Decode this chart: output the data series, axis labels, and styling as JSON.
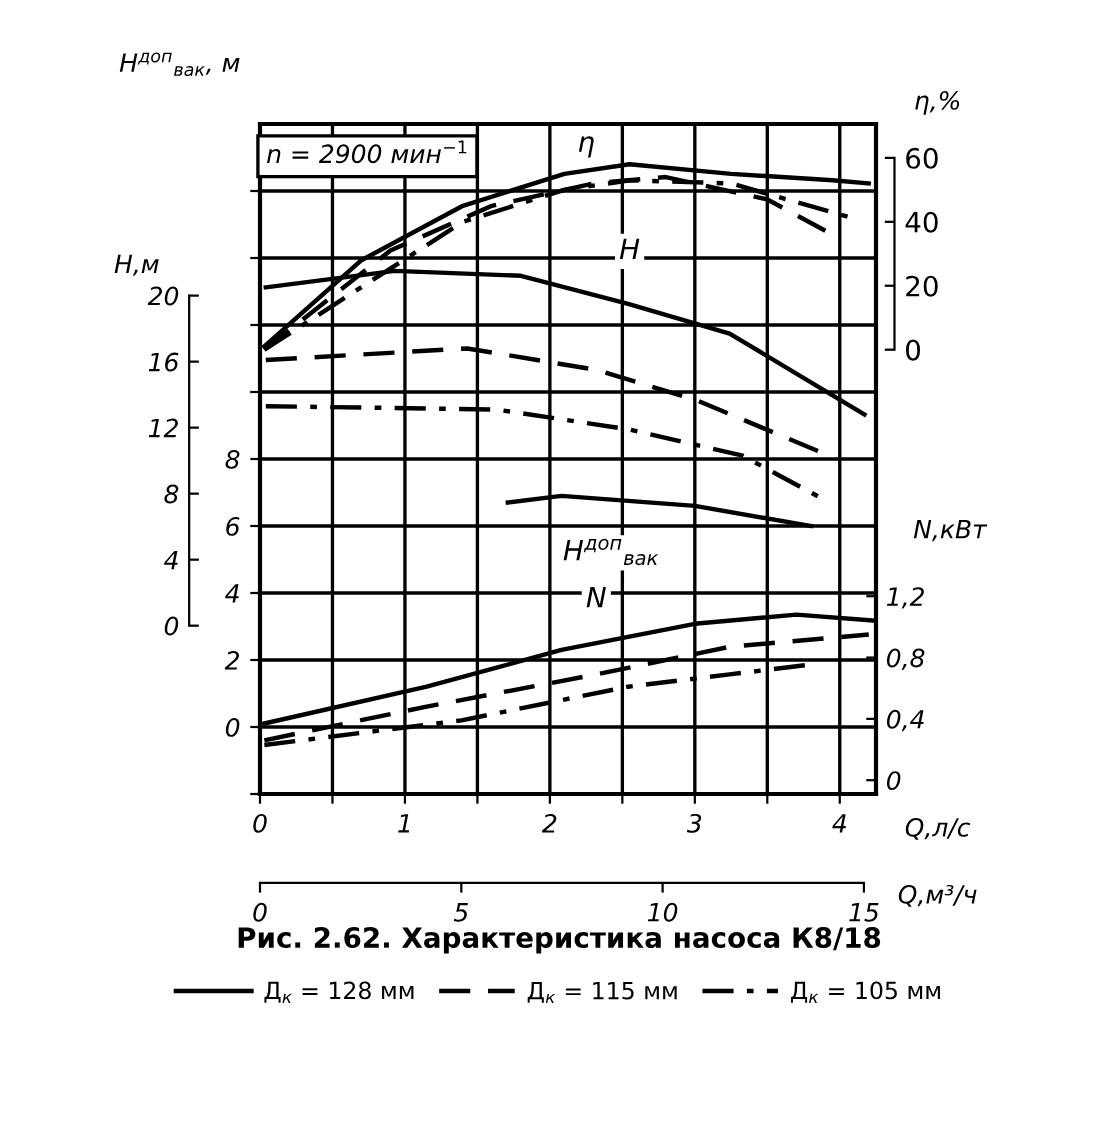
{
  "chart_data": [
    {
      "type": "line",
      "title": "Рис. 2.62. Характеристика насоса К8/18",
      "xlabel": "Q,л/с",
      "ylabel": "H$^{доп}$$_{вак}$, м",
      "y2label": "η,%",
      "y3label": "H,м",
      "x2label": "Q,м³/ч",
      "xlim": [
        0,
        4.25
      ],
      "xticks": [
        0,
        {
          "value": 0.5,
          "label": null
        },
        1,
        {
          "value": 1.5,
          "label": null
        },
        2,
        {
          "value": 2.5,
          "label": null
        },
        3,
        {
          "value": 3.5,
          "label": null
        },
        4
      ],
      "x2lim": [
        0,
        15.3
      ],
      "x2ticks": [
        0,
        5,
        10,
        15
      ],
      "ylim": [
        -2,
        18
      ],
      "yticks": [
        {
          "value": -2,
          "label": null
        },
        0,
        2,
        4,
        6,
        8,
        {
          "value": 10,
          "label": null
        },
        {
          "value": 12,
          "label": null
        },
        {
          "value": 14,
          "label": null
        },
        {
          "value": 16,
          "label": null
        }
      ],
      "y2lim": [
        -139,
        70.6
      ],
      "y2ticks": [
        0,
        20,
        40,
        60
      ],
      "y3lim": [
        -10.2,
        30.4
      ],
      "y3ticks": [
        0,
        4,
        8,
        12,
        16,
        20
      ],
      "grid": true,
      "legend": "bottom",
      "marker": "none",
      "annotations": [
        "n = 2900 мин$^{−1}$",
        {
          "text": "η",
          "x": 2.25,
          "y": 17.4
        },
        {
          "text": "H",
          "x": 2.55,
          "y": 14.2
        },
        "H$^{доп}$$_{вак}$",
        {
          "text": "N",
          "x": 2.32,
          "y": 3.8
        }
      ],
      "series": [
        {
          "name": "Д$_{к}$ = 128 мм",
          "color": "#000000",
          "axis": "y3",
          "line_style": "solid",
          "x": [
            0.04,
            0.93,
            1.8,
            2.54,
            3.24,
            4.17
          ],
          "values": [
            20.5,
            21.5,
            21.2,
            19.5,
            17.7,
            12.8
          ]
        },
        {
          "name": "Д$_{к}$ = 115 мм",
          "color": "#000000",
          "axis": "y3",
          "line_style": "dashed",
          "x": [
            0.04,
            1.43,
            2.32,
            3.0,
            3.9
          ],
          "values": [
            16.1,
            16.8,
            15.5,
            13.7,
            10.4
          ]
        },
        {
          "name": "Д$_{к}$ = 105 мм",
          "color": "#000000",
          "axis": "y3",
          "line_style": "dashdot",
          "x": [
            0.04,
            1.63,
            2.54,
            3.33,
            3.9
          ],
          "values": [
            13.3,
            13.1,
            11.9,
            10.3,
            7.6
          ]
        },
        {
          "color": "#000000",
          "axis": "y2",
          "line_style": "solid",
          "x": [
            0.03,
            0.7,
            1.4,
            2.1,
            2.55,
            3.25,
            3.95,
            4.2
          ],
          "values": [
            1,
            28,
            45,
            55,
            58,
            55,
            53,
            52
          ]
        },
        {
          "color": "#000000",
          "axis": "y2",
          "line_style": "dashed",
          "x": [
            0.03,
            0.9,
            1.6,
            2.3,
            2.8,
            3.5,
            3.95
          ],
          "values": [
            0,
            31,
            45,
            52,
            54,
            47,
            36
          ]
        },
        {
          "color": "#000000",
          "axis": "y2",
          "line_style": "dashdot",
          "x": [
            0.03,
            1.4,
            2.1,
            2.55,
            3.25,
            4.1
          ],
          "values": [
            0,
            40,
            50,
            53,
            52,
            41
          ]
        },
        {
          "color": "#000000",
          "line_style": "solid",
          "x": [
            1.71,
            2.08,
            3.0,
            3.8
          ],
          "values": [
            6.7,
            6.9,
            6.6,
            6.0
          ]
        }
      ]
    },
    {
      "type": "line",
      "ylabel": "N,кВт",
      "tick_labels": "y",
      "marker": "none",
      "xlim": [
        0,
        4.25
      ],
      "ylim": [
        -0.09,
        4.28
      ],
      "yticks": [
        0,
        {
          "value": 0.4,
          "label": "0,4"
        },
        {
          "value": 0.8,
          "label": "0,8"
        },
        {
          "value": 1.2,
          "label": "1,2"
        }
      ],
      "series": [
        {
          "color": "#000000",
          "line_style": "solid",
          "x": [
            0.03,
            1.15,
            2.08,
            3.0,
            3.7,
            4.25
          ],
          "values": [
            0.37,
            0.61,
            0.85,
            1.02,
            1.08,
            1.04
          ]
        },
        {
          "color": "#000000",
          "line_style": "dashed",
          "x": [
            0.03,
            1.15,
            2.32,
            3.24,
            4.2
          ],
          "values": [
            0.26,
            0.48,
            0.69,
            0.87,
            0.95
          ]
        },
        {
          "color": "#000000",
          "line_style": "dashdot",
          "x": [
            0.03,
            1.39,
            2.54,
            3.24,
            3.85
          ],
          "values": [
            0.23,
            0.39,
            0.61,
            0.69,
            0.76
          ]
        }
      ]
    }
  ]
}
